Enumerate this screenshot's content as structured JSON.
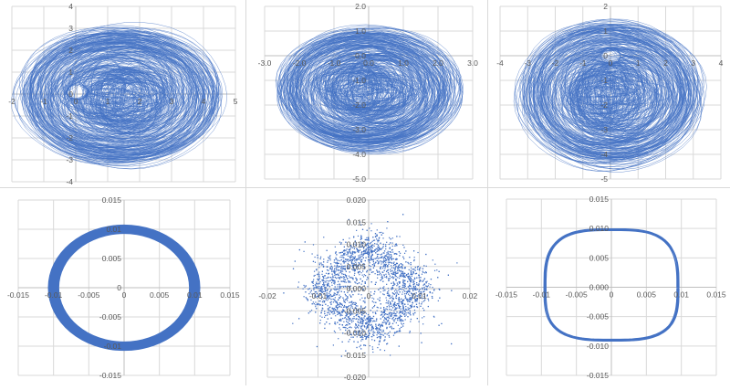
{
  "chart_data": [
    {
      "id": "top-left",
      "type": "line",
      "title": "",
      "xlabel": "",
      "ylabel": "",
      "xlim": [
        -2,
        5
      ],
      "ylim": [
        -4,
        4
      ],
      "x_ticks": [
        "-2",
        "-1",
        "0",
        "1",
        "2",
        "3",
        "4",
        "5"
      ],
      "y_ticks": [
        "4",
        "3",
        "2",
        "1",
        "0",
        "-1",
        "-2",
        "-3"
      ],
      "y_min_label": "-4",
      "grid": true,
      "series_color": "#4472C4",
      "description": "Dense chaotic phase-space trajectory, loops spanning x≈-1..4.3, y≈-3..3, hole near (0,0)",
      "envelope": {
        "cx": 1.4,
        "cy": -0.1,
        "rx": 2.9,
        "ry": 2.9
      },
      "hole": {
        "cx": 0.05,
        "cy": 0.1,
        "r": 0.35
      }
    },
    {
      "id": "top-center",
      "type": "line",
      "title": "",
      "xlabel": "",
      "ylabel": "",
      "xlim": [
        -3.0,
        3.0
      ],
      "ylim": [
        -5.0,
        2.0
      ],
      "x_ticks": [
        "-3.0",
        "-2.0",
        "-1.0",
        "0.0",
        "1.0",
        "2.0",
        "3.0"
      ],
      "y_ticks": [
        "2.0",
        "1.0",
        "0.0",
        "-1.0",
        "-2.0",
        "-3.0",
        "-4.0",
        "-5.0"
      ],
      "grid": true,
      "series_color": "#4472C4",
      "description": "Dense chaotic trajectory, x≈-2.4..2.4, y≈-3.7..0.9, small hole near (0,0)",
      "envelope": {
        "cx": 0.0,
        "cy": -1.4,
        "rx": 2.4,
        "ry": 2.3
      },
      "hole": {
        "cx": 0.05,
        "cy": 0.2,
        "r": 0.2
      }
    },
    {
      "id": "top-right",
      "type": "line",
      "title": "",
      "xlabel": "",
      "ylabel": "",
      "xlim": [
        -4,
        4
      ],
      "ylim": [
        -5,
        2
      ],
      "x_ticks": [
        "-4",
        "-3",
        "-2",
        "-1",
        "0",
        "1",
        "2",
        "3",
        "4"
      ],
      "y_ticks": [
        "2",
        "1",
        "0",
        "-1",
        "-2",
        "-3",
        "-4",
        "-5"
      ],
      "grid": true,
      "series_color": "#4472C4",
      "description": "Dense chaotic trajectory, x≈-3..3, y≈-4.3..1.1, hole near (0,0)",
      "envelope": {
        "cx": 0.0,
        "cy": -1.6,
        "rx": 3.0,
        "ry": 2.7
      },
      "hole": {
        "cx": 0.0,
        "cy": 0.0,
        "r": 0.35
      }
    },
    {
      "id": "bottom-left",
      "type": "line",
      "title": "",
      "xlabel": "",
      "ylabel": "",
      "xlim": [
        -0.015,
        0.015
      ],
      "ylim": [
        -0.015,
        0.015
      ],
      "x_ticks": [
        "-0.015",
        "-0.01",
        "-0.005",
        "0",
        "0.005",
        "0.01",
        "0.015"
      ],
      "y_ticks": [
        "0.015",
        "0.01",
        "0.005",
        "0",
        "-0.005",
        "-0.01",
        "-0.015"
      ],
      "grid": true,
      "series_color": "#4472C4",
      "description": "Thick elliptical ring (limit cycle band), outer radius ≈0.011, inner ≈0.009",
      "ring": {
        "cx": 0.0,
        "cy": 0.0,
        "rx_outer": 0.0108,
        "ry_outer": 0.0108,
        "rx_inner": 0.0092,
        "ry_inner": 0.0092
      }
    },
    {
      "id": "bottom-center",
      "type": "scatter",
      "title": "",
      "xlabel": "",
      "ylabel": "",
      "xlim": [
        -0.02,
        0.02
      ],
      "ylim": [
        -0.02,
        0.02
      ],
      "x_ticks": [
        "-0.02",
        "-0.01",
        "0",
        "0.01",
        "0.02"
      ],
      "y_ticks": [
        "0.020",
        "0.015",
        "0.010",
        "0.005",
        "0.000",
        "-0.005",
        "-0.010",
        "-0.015",
        "-0.020"
      ],
      "grid": true,
      "series_color": "#4472C4",
      "description": "Noisy scatter forming diamond (rotated square) shape with vertices at ≈(±0.01,0) and (0,±0.01), spread to ±0.016",
      "diamond_radius": 0.01,
      "noise_spread": 0.0035,
      "point_count": 3500
    },
    {
      "id": "bottom-right",
      "type": "line",
      "title": "",
      "xlabel": "",
      "ylabel": "",
      "xlim": [
        -0.015,
        0.015
      ],
      "ylim": [
        -0.015,
        0.015
      ],
      "x_ticks": [
        "-0.015",
        "-0.01",
        "-0.005",
        "0",
        "0.005",
        "0.01",
        "0.015"
      ],
      "y_ticks": [
        "0.015",
        "0.010",
        "0.005",
        "0.000",
        "-0.005",
        "-0.010",
        "-0.015"
      ],
      "grid": true,
      "series_color": "#4472C4",
      "description": "Rounded-square closed loop (superellipse), x≈±0.0095, y from -0.009 to 0.0098",
      "loop": {
        "rx": 0.0095,
        "ry_top": 0.0098,
        "ry_bottom": 0.009,
        "exponent": 3.2
      }
    }
  ]
}
